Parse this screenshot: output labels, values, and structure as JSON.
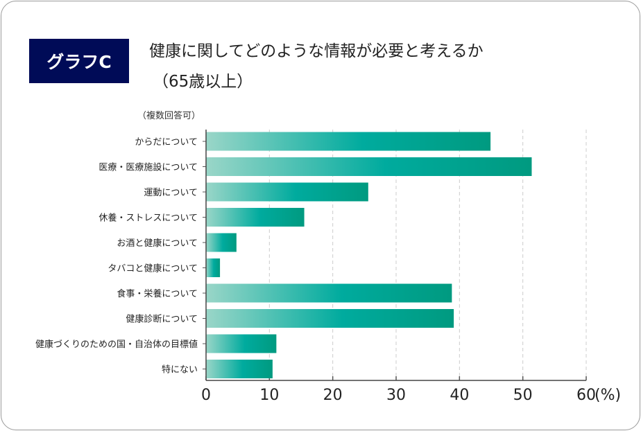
{
  "badge": "グラフC",
  "chart_data": {
    "type": "bar",
    "orientation": "horizontal",
    "title": "健康に関してどのような情報が必要と考えるか",
    "subtitle": "（65歳以上）",
    "note": "（複数回答可）",
    "unit_label": "(%)",
    "categories": [
      "からだについて",
      "医療・医療施設について",
      "運動について",
      "休養・ストレスについて",
      "お酒と健康について",
      "タバコと健康について",
      "食事・栄養について",
      "健康診断について",
      "健康づくりのための国・自治体の目標値",
      "特にない"
    ],
    "values": [
      44.9,
      51.4,
      25.6,
      15.5,
      4.8,
      2.2,
      38.8,
      39.1,
      11.1,
      10.5
    ],
    "xlim": [
      0,
      60
    ],
    "xticks": [
      0,
      10,
      20,
      30,
      40,
      50,
      60
    ],
    "grid": true,
    "bar_gradient": [
      "#9ad6c8",
      "#00ab9e",
      "#009a80"
    ]
  }
}
